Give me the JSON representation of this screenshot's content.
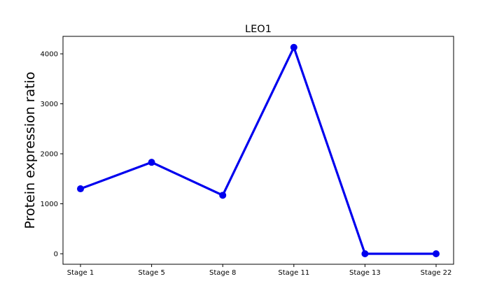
{
  "chart_data": {
    "type": "line",
    "title": "LEO1",
    "xlabel": "",
    "ylabel": "Protein expression ratio",
    "categories": [
      "Stage 1",
      "Stage 5",
      "Stage 8",
      "Stage 11",
      "Stage 13",
      "Stage 22"
    ],
    "series": [
      {
        "values": [
          1300,
          1830,
          1170,
          4130,
          0,
          0
        ],
        "color": "#0000ee"
      }
    ],
    "yticks": [
      0,
      1000,
      2000,
      3000,
      4000
    ],
    "ylim": [
      -210,
      4350
    ],
    "grid": false,
    "legend": "none"
  }
}
